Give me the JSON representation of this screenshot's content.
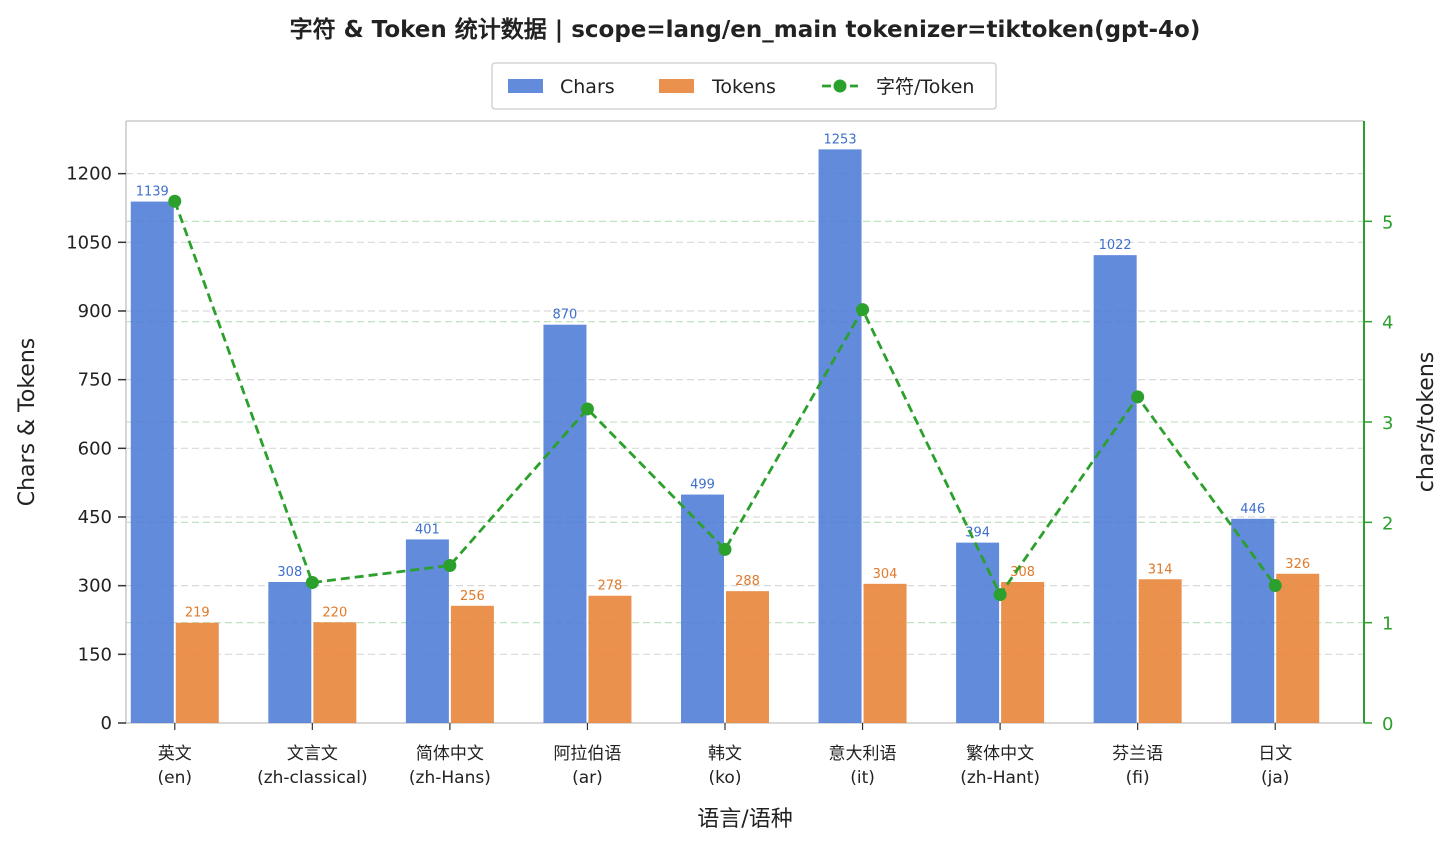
{
  "chart_data": {
    "type": "bar",
    "title": "字符 & Token 统计数据  |  scope=lang/en_main  tokenizer=tiktoken(gpt-4o)",
    "xlabel": "语言/语种",
    "ylabel": "Chars & Tokens",
    "y2label": "chars/tokens",
    "categories": [
      [
        "英文",
        "(en)"
      ],
      [
        "文言文",
        "(zh-classical)"
      ],
      [
        "简体中文",
        "(zh-Hans)"
      ],
      [
        "阿拉伯语",
        "(ar)"
      ],
      [
        "韩文",
        "(ko)"
      ],
      [
        "意大利语",
        "(it)"
      ],
      [
        "繁体中文",
        "(zh-Hant)"
      ],
      [
        "芬兰语",
        "(fi)"
      ],
      [
        "日文",
        "(ja)"
      ]
    ],
    "series": [
      {
        "name": "Chars",
        "kind": "bar",
        "axis": "left",
        "color": "#4C7BD6",
        "label_color": "#3F6FCC",
        "values": [
          1139,
          308,
          401,
          870,
          499,
          1253,
          394,
          1022,
          446
        ]
      },
      {
        "name": "Tokens",
        "kind": "bar",
        "axis": "left",
        "color": "#E8883E",
        "label_color": "#E07A2C",
        "values": [
          219,
          220,
          256,
          278,
          288,
          304,
          308,
          314,
          326
        ]
      },
      {
        "name": "字符/Token",
        "kind": "line",
        "axis": "right",
        "color": "#2CA02C",
        "style": "dashed",
        "marker": "circle",
        "values": [
          5.2,
          1.4,
          1.57,
          3.13,
          1.73,
          4.12,
          1.28,
          3.25,
          1.37
        ]
      }
    ],
    "ylim": [
      0,
      1315
    ],
    "yticks": [
      0,
      150,
      300,
      450,
      600,
      750,
      900,
      1050,
      1200
    ],
    "y2lim": [
      0,
      6
    ],
    "y2ticks": [
      0,
      1,
      2,
      3,
      4,
      5
    ],
    "grid": true,
    "legend": "top-center"
  }
}
